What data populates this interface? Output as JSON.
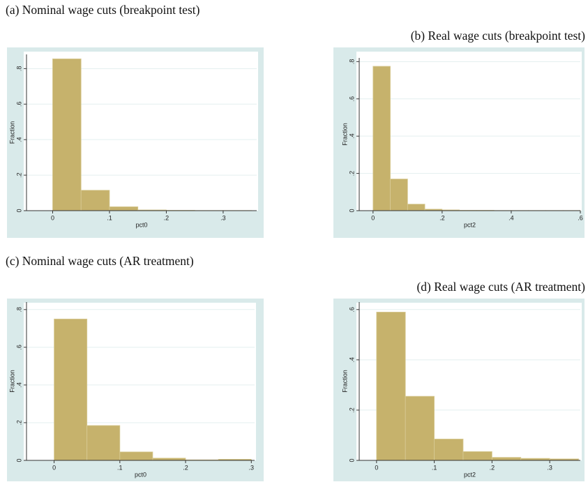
{
  "chart_data": [
    {
      "type": "histogram",
      "title": "(a) Nominal wage cuts (breakpoint test)",
      "xlabel": "pct0",
      "ylabel": "Fraction",
      "bins": [
        0,
        0.05,
        0.1,
        0.15,
        0.2,
        0.25,
        0.3,
        0.35
      ],
      "values": [
        0.855,
        0.115,
        0.022,
        0.004,
        0.002,
        0.001,
        0.001
      ],
      "color": "#c6b26c",
      "xlim": [
        -0.046,
        0.359
      ],
      "ylim": [
        0,
        0.88
      ],
      "xticks": [
        0,
        {
          "value": 0.1,
          "label": ".1"
        },
        {
          "value": 0.2,
          "label": ".2"
        },
        {
          "value": 0.3,
          "label": ".3"
        }
      ],
      "yticks": [
        0,
        {
          "value": 0.2,
          "label": ".2"
        },
        {
          "value": 0.4,
          "label": ".4"
        },
        {
          "value": 0.6,
          "label": ".6"
        },
        {
          "value": 0.8,
          "label": ".8"
        }
      ],
      "grid": true
    },
    {
      "type": "histogram",
      "title": "(b) Real wage cuts (breakpoint test)",
      "xlabel": "pct2",
      "ylabel": "Fraction",
      "bins": [
        0,
        0.05,
        0.1,
        0.15,
        0.2,
        0.25,
        0.3,
        0.35,
        0.4,
        0.45,
        0.5,
        0.55,
        0.6
      ],
      "values": [
        0.775,
        0.17,
        0.035,
        0.008,
        0.004,
        0.002,
        0.002,
        0.001,
        0.001,
        0.001,
        0.001,
        0.001
      ],
      "color": "#c6b26c",
      "xlim": [
        -0.04,
        0.6
      ],
      "ylim": [
        0,
        0.82
      ],
      "xticks": [
        0,
        {
          "value": 0.2,
          "label": ".2"
        },
        {
          "value": 0.4,
          "label": ".4"
        },
        {
          "value": 0.6,
          "label": ".6"
        }
      ],
      "yticks": [
        0,
        {
          "value": 0.2,
          "label": ".2"
        },
        {
          "value": 0.4,
          "label": ".4"
        },
        {
          "value": 0.6,
          "label": ".6"
        },
        {
          "value": 0.8,
          "label": ".8"
        }
      ],
      "grid": true
    },
    {
      "type": "histogram",
      "title": "(c) Nominal wage cuts (AR treat­ment)",
      "xlabel": "pct0",
      "ylabel": "Fraction",
      "bins": [
        0,
        0.05,
        0.1,
        0.15,
        0.2,
        0.25,
        0.3
      ],
      "values": [
        0.75,
        0.185,
        0.045,
        0.012,
        0.003,
        0.006
      ],
      "color": "#c6b26c",
      "xlim": [
        -0.042,
        0.305
      ],
      "ylim": [
        0,
        0.84
      ],
      "xticks": [
        0,
        {
          "value": 0.1,
          "label": ".1"
        },
        {
          "value": 0.2,
          "label": ".2"
        },
        {
          "value": 0.3,
          "label": ".3"
        }
      ],
      "yticks": [
        0,
        {
          "value": 0.2,
          "label": ".2"
        },
        {
          "value": 0.4,
          "label": ".4"
        },
        {
          "value": 0.6,
          "label": ".6"
        },
        {
          "value": 0.8,
          "label": ".8"
        }
      ],
      "grid": true
    },
    {
      "type": "histogram",
      "title": "(d) Real wage cuts (AR treatment)",
      "xlabel": "pct2",
      "ylabel": "Fraction",
      "bins": [
        0,
        0.05,
        0.1,
        0.15,
        0.2,
        0.25,
        0.3,
        0.35
      ],
      "values": [
        0.59,
        0.255,
        0.085,
        0.035,
        0.012,
        0.008,
        0.006
      ],
      "color": "#c6b26c",
      "xlim": [
        -0.03,
        0.353
      ],
      "ylim": [
        0,
        0.63
      ],
      "xticks": [
        0,
        {
          "value": 0.1,
          "label": ".1"
        },
        {
          "value": 0.2,
          "label": ".2"
        },
        {
          "value": 0.3,
          "label": ".3"
        }
      ],
      "yticks": [
        0,
        {
          "value": 0.2,
          "label": ".2"
        },
        {
          "value": 0.4,
          "label": ".4"
        },
        {
          "value": 0.6,
          "label": ".6"
        }
      ],
      "grid": true
    }
  ]
}
